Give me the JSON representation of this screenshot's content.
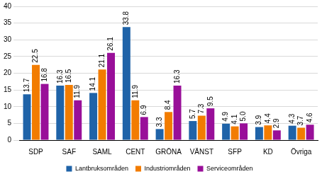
{
  "chart_data": {
    "type": "bar",
    "categories": [
      "SDP",
      "SAF",
      "SAML",
      "CENT",
      "GRÖNA",
      "VÄNST",
      "SFP",
      "KD",
      "Övriga"
    ],
    "series": [
      {
        "name": "Lantbruksområden",
        "color": "#1f63a8",
        "values": [
          13.7,
          16.3,
          14.1,
          33.8,
          3.3,
          5.7,
          4.9,
          3.9,
          4.3
        ],
        "value_labels": [
          "13.7",
          "16.3",
          "14.1",
          "33.8",
          "3.3",
          "5.7",
          "4.9",
          "3.9",
          "4.3"
        ]
      },
      {
        "name": "Industriområden",
        "color": "#f27c00",
        "values": [
          22.5,
          16.5,
          21.1,
          11.9,
          8.4,
          7.3,
          4.1,
          4.4,
          3.7
        ],
        "value_labels": [
          "22.5",
          "16.5",
          "21.1",
          "11.9",
          "8.4",
          "7.3",
          "4.1",
          "4.4",
          "3.7"
        ]
      },
      {
        "name": "Serviceområden",
        "color": "#990f99",
        "values": [
          16.8,
          11.9,
          26.1,
          6.9,
          16.3,
          9.5,
          5.0,
          2.9,
          4.6
        ],
        "value_labels": [
          "16.8",
          "11.9",
          "26.1",
          "6.9",
          "16.3",
          "9.5",
          "5.0",
          "2.9",
          "4.6"
        ]
      }
    ],
    "ylim": [
      0,
      40
    ],
    "yticks": [
      0,
      5,
      10,
      15,
      20,
      25,
      30,
      35,
      40
    ],
    "grid": true,
    "legend": "bottom",
    "data_labels": true
  }
}
